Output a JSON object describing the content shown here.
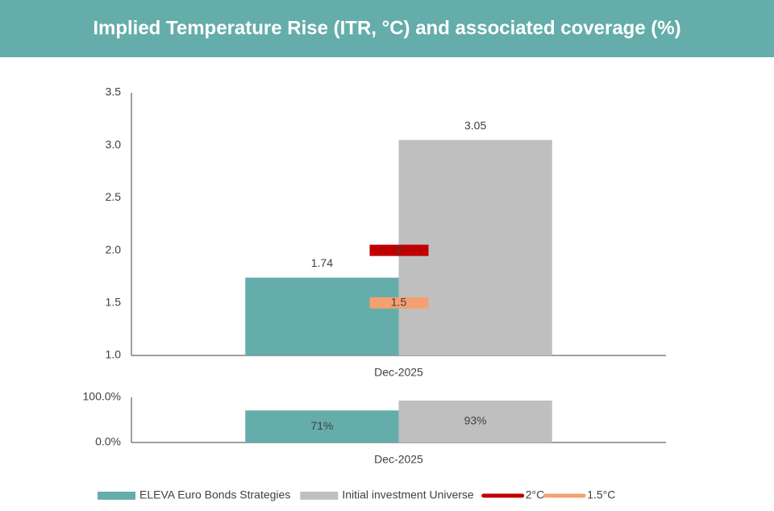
{
  "header": {
    "title": "Implied Temperature Rise (ITR, °C) and associated coverage (%)"
  },
  "chart_data": [
    {
      "type": "bar",
      "categories": [
        "Dec-2025"
      ],
      "series": [
        {
          "name": "ELEVA Euro Bonds Strategies",
          "color": "#64ADAA",
          "values": [
            1.74
          ]
        },
        {
          "name": "Initial investment Universe",
          "color": "#BFBFBF",
          "values": [
            3.05
          ]
        }
      ],
      "reference_lines": [
        {
          "name": "2°C",
          "color": "#C00000",
          "value": 2
        },
        {
          "name": "1.5°C",
          "color": "#F4A070",
          "value": 1.5
        }
      ],
      "ylim": [
        1,
        3.5
      ],
      "yticks": [
        {
          "value": 1,
          "label": "1.0"
        },
        {
          "value": 1.5,
          "label": "1.5"
        },
        {
          "value": 2,
          "label": "2.0"
        },
        {
          "value": 2.5,
          "label": "2.5"
        },
        {
          "value": 3,
          "label": "3.0"
        },
        {
          "value": 3.5,
          "label": "3.5"
        }
      ],
      "value_label_position": "above",
      "grid": false
    },
    {
      "type": "bar",
      "categories": [
        "Dec-2025"
      ],
      "series": [
        {
          "color": "#64ADAA",
          "values": [
            71
          ],
          "value_labels": [
            "71%"
          ]
        },
        {
          "color": "#BFBFBF",
          "values": [
            93
          ],
          "value_labels": [
            "93%"
          ]
        }
      ],
      "ylim": [
        0,
        100
      ],
      "yticks": [
        {
          "value": 0,
          "label": "0.0%"
        },
        {
          "value": 100,
          "label": "100.0%"
        }
      ],
      "value_label_position": "inside",
      "grid": false
    }
  ]
}
